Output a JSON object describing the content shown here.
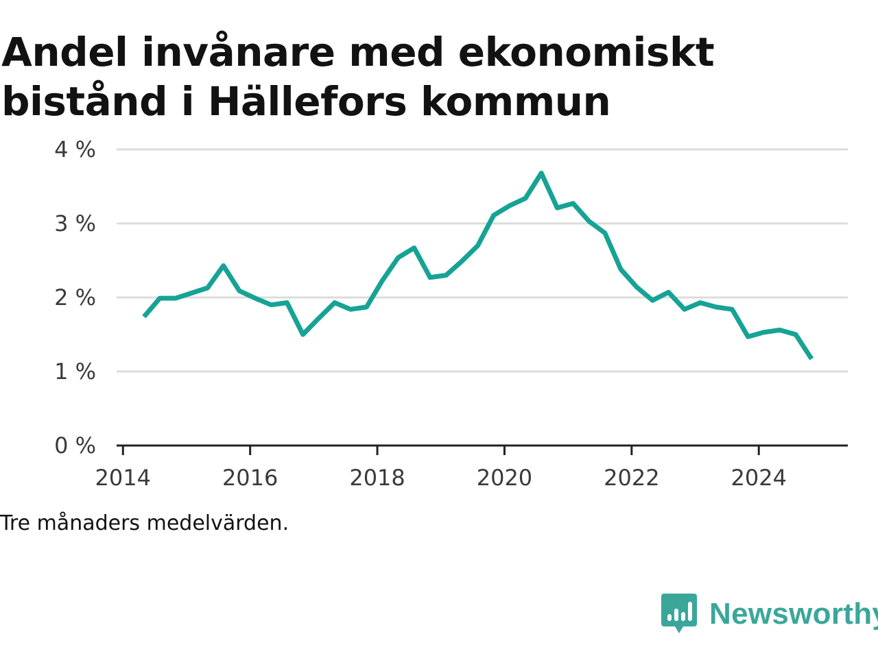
{
  "title": "Andel invånare med ekonomiskt bistånd i Hällefors kommun",
  "note": "Tre månaders medelvärden.",
  "brand": {
    "name": "Newsworthy",
    "color": "#3aa79a"
  },
  "colors": {
    "line": "#16a395",
    "grid": "#dcdcdc",
    "axis": "#222222",
    "text": "#3a3a3a"
  },
  "chart_data": {
    "type": "line",
    "title": "Andel invånare med ekonomiskt bistånd i Hällefors kommun",
    "xlabel": "",
    "ylabel": "",
    "xlim": [
      2013.9,
      2025.4
    ],
    "ylim": [
      0,
      4
    ],
    "x_ticks": [
      2014,
      2016,
      2018,
      2020,
      2022,
      2024
    ],
    "x_tick_labels": [
      "2014",
      "2016",
      "2018",
      "2020",
      "2022",
      "2024"
    ],
    "y_ticks": [
      0,
      1,
      2,
      3,
      4
    ],
    "y_tick_labels": [
      "0 %",
      "1 %",
      "2 %",
      "3 %",
      "4 %"
    ],
    "grid": true,
    "legend": "none",
    "series": [
      {
        "x": [
          2014.33,
          2014.58,
          2014.83,
          2015.08,
          2015.33,
          2015.58,
          2015.83,
          2016.08,
          2016.33,
          2016.58,
          2016.83,
          2017.08,
          2017.33,
          2017.58,
          2017.83,
          2018.08,
          2018.33,
          2018.58,
          2018.83,
          2019.08,
          2019.33,
          2019.58,
          2019.83,
          2020.08,
          2020.33,
          2020.58,
          2020.83,
          2021.08,
          2021.33,
          2021.58,
          2021.83,
          2022.08,
          2022.33,
          2022.58,
          2022.83,
          2023.08,
          2023.33,
          2023.58,
          2023.83,
          2024.08,
          2024.33,
          2024.58,
          2024.83
        ],
        "y": [
          1.74,
          1.99,
          1.99,
          2.06,
          2.13,
          2.43,
          2.09,
          1.99,
          1.9,
          1.93,
          1.5,
          1.72,
          1.93,
          1.84,
          1.87,
          2.23,
          2.54,
          2.67,
          2.27,
          2.3,
          2.49,
          2.7,
          3.11,
          3.24,
          3.34,
          3.68,
          3.21,
          3.27,
          3.03,
          2.87,
          2.38,
          2.14,
          1.96,
          2.07,
          1.84,
          1.93,
          1.87,
          1.84,
          1.47,
          1.53,
          1.56,
          1.5,
          1.17
        ]
      }
    ]
  }
}
